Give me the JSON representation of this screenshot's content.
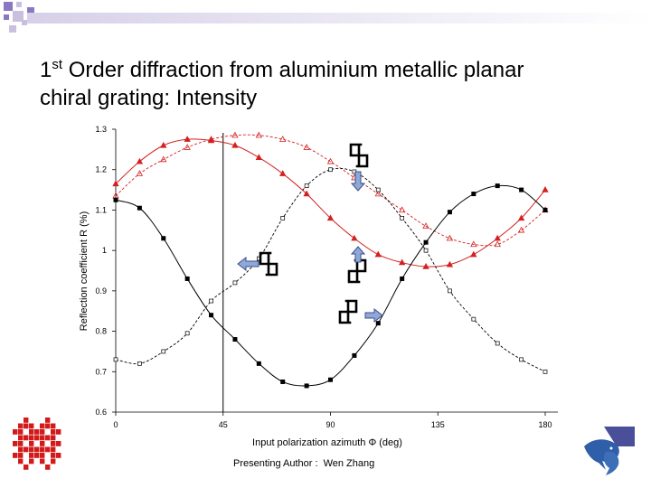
{
  "slide": {
    "title_line1": "Order diffraction from aluminium metallic planar",
    "title_line2": "chiral grating: Intensity",
    "title_ordinal": "1",
    "title_superscript": "st",
    "footer_label": "Presenting Author :",
    "footer_name": "Wen Zhang"
  },
  "colors": {
    "red_series": "#d42020",
    "black_series": "#000000",
    "arrow_fill": "#8fa8d8",
    "arrow_stroke": "#3a4f8a",
    "header_square": "#6a4ba8"
  },
  "icons": [
    "left-handed-chiral-symbol-icon",
    "right-handed-chiral-symbol-icon",
    "pixel-logo-icon",
    "dolphin-logo-icon"
  ],
  "chart_data": {
    "type": "line",
    "xlabel": "Input polarization azimuth Φ (deg)",
    "ylabel": "Reflection coefficient R (%)",
    "xlim": [
      0,
      180
    ],
    "ylim": [
      0.6,
      1.3
    ],
    "xticks": [
      0,
      45,
      90,
      135,
      180
    ],
    "yticks": [
      1.3,
      1.2,
      1.1,
      1,
      0.9,
      0.8,
      0.7,
      0.6
    ],
    "vertical_line_x": 45,
    "series": [
      {
        "color": "#d42020",
        "style": "solid",
        "marker": "triangle",
        "x": [
          0,
          10,
          20,
          30,
          40,
          50,
          60,
          70,
          80,
          90,
          100,
          110,
          120,
          130,
          140,
          150,
          160,
          170,
          180
        ],
        "values": [
          1.165,
          1.22,
          1.26,
          1.275,
          1.272,
          1.26,
          1.23,
          1.19,
          1.14,
          1.08,
          1.03,
          0.99,
          0.97,
          0.96,
          0.965,
          0.99,
          1.03,
          1.08,
          1.15
        ]
      },
      {
        "color": "#d42020",
        "style": "dashed",
        "marker": "triangle",
        "x": [
          0,
          10,
          20,
          30,
          40,
          50,
          60,
          70,
          80,
          90,
          100,
          110,
          120,
          130,
          140,
          150,
          160,
          170,
          180
        ],
        "values": [
          1.135,
          1.19,
          1.225,
          1.255,
          1.275,
          1.285,
          1.285,
          1.275,
          1.255,
          1.22,
          1.18,
          1.14,
          1.1,
          1.06,
          1.03,
          1.015,
          1.015,
          1.05,
          1.1
        ]
      },
      {
        "color": "#000000",
        "style": "solid",
        "marker": "square",
        "x": [
          0,
          10,
          20,
          30,
          40,
          50,
          60,
          70,
          80,
          90,
          100,
          110,
          120,
          130,
          140,
          150,
          160,
          170,
          180
        ],
        "values": [
          1.125,
          1.105,
          1.03,
          0.93,
          0.84,
          0.78,
          0.72,
          0.675,
          0.665,
          0.68,
          0.74,
          0.82,
          0.93,
          1.02,
          1.095,
          1.14,
          1.16,
          1.15,
          1.1
        ]
      },
      {
        "color": "#000000",
        "style": "dashed",
        "marker": "open-square",
        "x": [
          0,
          10,
          20,
          30,
          40,
          50,
          60,
          70,
          80,
          90,
          100,
          110,
          120,
          130,
          140,
          150,
          160,
          170,
          180
        ],
        "values": [
          0.73,
          0.72,
          0.75,
          0.795,
          0.875,
          0.92,
          0.98,
          1.08,
          1.16,
          1.2,
          1.195,
          1.15,
          1.08,
          1.0,
          0.9,
          0.83,
          0.77,
          0.73,
          0.7
        ]
      }
    ]
  }
}
